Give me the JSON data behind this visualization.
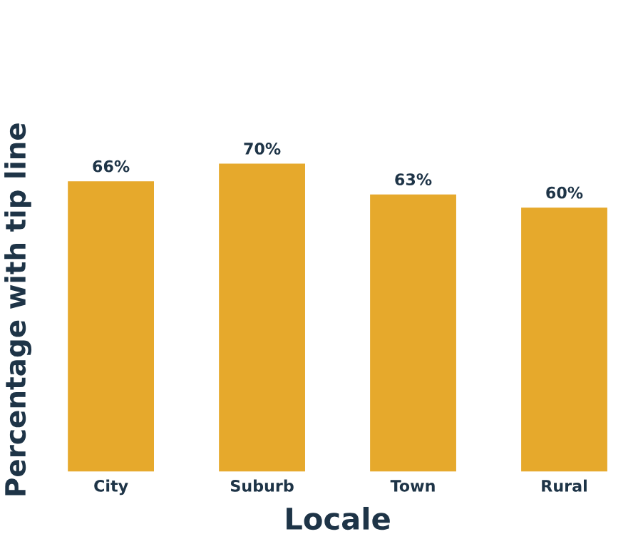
{
  "chart_data": {
    "type": "bar",
    "xlabel": "Locale",
    "ylabel": "Percentage with tip line",
    "categories": [
      "City",
      "Suburb",
      "Town",
      "Rural"
    ],
    "values": [
      66,
      70,
      63,
      60
    ],
    "value_labels": [
      "66%",
      "70%",
      "63%",
      "60%"
    ],
    "color": "#e6a92c",
    "grid": false,
    "legend": false
  }
}
